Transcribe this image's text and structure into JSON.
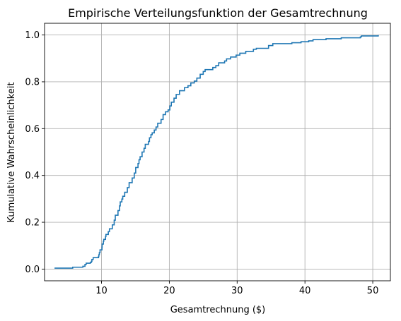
{
  "chart_data": {
    "type": "line",
    "step": true,
    "title": "Empirische Verteilungsfunktion der Gesamtrechnung",
    "xlabel": "Gesamtrechnung ($)",
    "ylabel": "Kumulative Wahrscheinlichkeit",
    "xlim": [
      1.6,
      52.6
    ],
    "ylim": [
      -0.05,
      1.05
    ],
    "xticks": [
      10,
      20,
      30,
      40,
      50
    ],
    "xtick_labels": [
      "10",
      "20",
      "30",
      "40",
      "50"
    ],
    "yticks": [
      0.0,
      0.2,
      0.4,
      0.6,
      0.8,
      1.0
    ],
    "ytick_labels": [
      "0.0",
      "0.2",
      "0.4",
      "0.6",
      "0.8",
      "1.0"
    ],
    "grid": true,
    "color": "#1f77b4",
    "series": [
      {
        "x": [
          3.07,
          5.75,
          7.25,
          7.56,
          7.74,
          8.35,
          8.51,
          8.58,
          8.77,
          9.55,
          9.6,
          9.68,
          9.78,
          10.07,
          10.09,
          10.27,
          10.33,
          10.59,
          10.65,
          11.0,
          11.17,
          11.59,
          11.87,
          12.03,
          12.43,
          12.66,
          12.76,
          13.0,
          13.13,
          13.42,
          13.81,
          14.07,
          14.52,
          14.83,
          15.04,
          15.38,
          15.53,
          15.69,
          15.98,
          16.27,
          16.45,
          16.93,
          17.07,
          17.29,
          17.47,
          17.78,
          18.04,
          18.29,
          18.78,
          19.08,
          19.44,
          19.82,
          20.08,
          20.29,
          20.69,
          21.01,
          21.5,
          22.23,
          22.75,
          23.17,
          23.68,
          24.06,
          24.55,
          25.0,
          25.28,
          26.41,
          26.86,
          27.28,
          28.15,
          28.44,
          29.03,
          29.85,
          30.4,
          31.27,
          32.4,
          32.83,
          34.63,
          35.26,
          38.07,
          39.42,
          40.55,
          41.19,
          43.11,
          45.35,
          48.17,
          48.33,
          50.81
        ],
        "y": [
          0.004,
          0.008,
          0.012,
          0.02,
          0.025,
          0.029,
          0.033,
          0.041,
          0.049,
          0.053,
          0.061,
          0.07,
          0.082,
          0.094,
          0.107,
          0.119,
          0.127,
          0.139,
          0.148,
          0.16,
          0.172,
          0.189,
          0.209,
          0.23,
          0.25,
          0.27,
          0.287,
          0.299,
          0.311,
          0.328,
          0.348,
          0.369,
          0.389,
          0.41,
          0.434,
          0.451,
          0.467,
          0.48,
          0.5,
          0.516,
          0.533,
          0.545,
          0.561,
          0.574,
          0.582,
          0.594,
          0.607,
          0.623,
          0.639,
          0.66,
          0.672,
          0.68,
          0.697,
          0.713,
          0.73,
          0.746,
          0.762,
          0.775,
          0.783,
          0.795,
          0.803,
          0.816,
          0.832,
          0.844,
          0.852,
          0.861,
          0.869,
          0.881,
          0.889,
          0.898,
          0.906,
          0.914,
          0.922,
          0.93,
          0.939,
          0.943,
          0.955,
          0.963,
          0.967,
          0.971,
          0.975,
          0.98,
          0.984,
          0.988,
          0.992,
          0.996,
          1.0
        ]
      }
    ]
  }
}
